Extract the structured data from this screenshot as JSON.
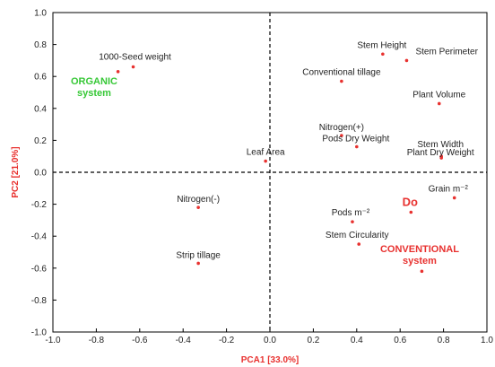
{
  "chart_data": {
    "type": "scatter",
    "title": "",
    "xlabel": "PCA1 [33.0%]",
    "ylabel": "PC2 [21.0%]",
    "xlim": [
      -1.0,
      1.0
    ],
    "ylim": [
      -1.0,
      1.0
    ],
    "x_ticks": [
      "-1.0",
      "-0.8",
      "-0.6",
      "-0.4",
      "-0.2",
      "0.0",
      "0.2",
      "0.4",
      "0.6",
      "0.8",
      "1.0"
    ],
    "y_ticks": [
      "1.0",
      "0.8",
      "0.6",
      "0.4",
      "0.2",
      "0.0",
      "-0.2",
      "-0.4",
      "-0.6",
      "-0.8",
      "-1.0"
    ],
    "grid": false,
    "reference_lines": {
      "x": 0,
      "y": 0,
      "style": "dashed"
    },
    "point_color": "#e8312f",
    "points": [
      {
        "label": "1000-Seed weight",
        "x": -0.63,
        "y": 0.66
      },
      {
        "label": "",
        "x": -0.7,
        "y": 0.63
      },
      {
        "label": "Stem Height",
        "x": 0.52,
        "y": 0.74
      },
      {
        "label": "Stem Perimeter",
        "x": 0.63,
        "y": 0.7
      },
      {
        "label": "Conventional tillage",
        "x": 0.33,
        "y": 0.57
      },
      {
        "label": "Plant Volume",
        "x": 0.78,
        "y": 0.43
      },
      {
        "label": "Nitrogen(+)",
        "x": 0.33,
        "y": 0.23
      },
      {
        "label": "Pods Dry Weight",
        "x": 0.4,
        "y": 0.16
      },
      {
        "label": "Stem Width",
        "x": 0.79,
        "y": 0.1
      },
      {
        "label": "Plant Dry Weight",
        "x": 0.79,
        "y": 0.09
      },
      {
        "label": "Leaf Area",
        "x": -0.02,
        "y": 0.07
      },
      {
        "label": "Grain m⁻²",
        "x": 0.85,
        "y": -0.16
      },
      {
        "label": "Do",
        "x": 0.65,
        "y": -0.25
      },
      {
        "label": "Pods m⁻²",
        "x": 0.38,
        "y": -0.31
      },
      {
        "label": "Nitrogen(-)",
        "x": -0.33,
        "y": -0.22
      },
      {
        "label": "Stem Circularity",
        "x": 0.41,
        "y": -0.45
      },
      {
        "label": "Strip tillage",
        "x": -0.33,
        "y": -0.57
      },
      {
        "label": "",
        "x": 0.7,
        "y": -0.62
      }
    ],
    "annotations": [
      {
        "lines": [
          "ORGANIC",
          "system"
        ],
        "color": "#37c837"
      },
      {
        "lines": [
          "CONVENTIONAL",
          "system"
        ],
        "color": "#e8312f"
      }
    ]
  }
}
